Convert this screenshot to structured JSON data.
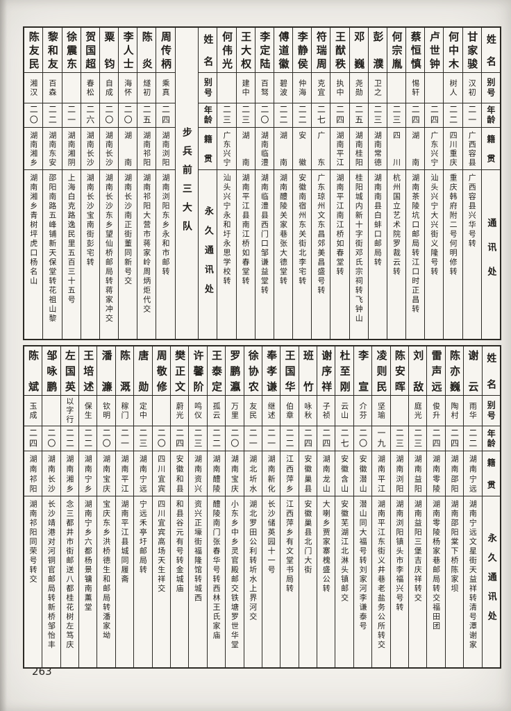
{
  "page": {
    "number": "263"
  },
  "t1": {
    "h1": {
      "name": "姓名",
      "alias": "别号",
      "age": "年龄",
      "native": "籍贯",
      "address": "通讯处"
    },
    "right_entries": [
      {
        "name": "甘家骏",
        "alias": "汉初",
        "age": "二一",
        "native": "广西容县",
        "address": "广西容县兴华号转"
      },
      {
        "name": "何中木",
        "alias": "树人",
        "age": "二二",
        "native": "四川重庆",
        "address": "重庆韩府附二号何明修转"
      },
      {
        "name": "卢世钟",
        "alias": "",
        "age": "二四",
        "native": "广东兴宁",
        "address": "汕头兴宁大兴街义隆号转"
      },
      {
        "name": "蔡恒慎",
        "alias": "惕轩",
        "age": "二四",
        "native": "湖南",
        "address": "湖南茶陵坑口邮局转江口时正昌转"
      },
      {
        "name": "何宗胤",
        "alias": "",
        "age": "二三",
        "native": "四川",
        "address": "杭州国立艺术院罗裁云转"
      },
      {
        "name": "彭濮",
        "alias": "卫之",
        "age": "二三",
        "native": "湖南常德",
        "address": "湖南南县白蚌口邮局转"
      },
      {
        "name": "邓巍",
        "alias": "尧勋",
        "age": "二五",
        "native": "湖南桂阳",
        "address": "桂阳城内新十字街邓氏宗祠转飞钟山"
      },
      {
        "name": "王猷秩",
        "alias": "执中",
        "age": "二四",
        "native": "湖南平江",
        "address": "湖南平江南江桥如春堂转"
      },
      {
        "name": "符瑞周",
        "alias": "克宜",
        "age": "二七",
        "native": "广东",
        "address": "广东琼州文东昌郊美昌盛号转"
      },
      {
        "name": "李静侯",
        "alias": "仲海",
        "age": "二二",
        "native": "安徽",
        "address": "安徽南宿州东关街北李宅转"
      },
      {
        "name": "傅道徽",
        "alias": "碧波",
        "age": "二二",
        "native": "湖南",
        "address": "湖南醴陵关家巷张大德堂转"
      },
      {
        "name": "李定陆",
        "alias": "百驽",
        "age": "二〇",
        "native": "湖南临澧",
        "address": "湖南临澧县西门口邹谦益堂转"
      },
      {
        "name": "王大权",
        "alias": "建中",
        "age": "二三",
        "native": "湖南",
        "address": "湖南平江县南江桥如春堂转"
      },
      {
        "name": "何伟光",
        "alias": "",
        "age": "二三",
        "native": "广东兴宁",
        "address": "汕头兴宁永和圩永思学校转"
      }
    ],
    "h2": {
      "name": "姓名",
      "alias": "别号",
      "age": "年龄",
      "native": "籍贯",
      "address": "永久通讯处"
    },
    "section_title": "步兵前三大队",
    "left_entries": [
      {
        "name": "周传柄",
        "alias": "乘真",
        "age": "二四",
        "native": "湖南浏阳",
        "address": "湖南浏阳东乡永和市邮转"
      },
      {
        "name": "陈炎",
        "alias": "燧初",
        "age": "二五",
        "native": "湖南祁阳",
        "address": "湖南祁阳大营市蒋家岭周炳炬代交"
      },
      {
        "name": "李人士",
        "alias": "海怀",
        "age": "二〇",
        "native": "湖南",
        "address": "湖南长沙南正街董同新号交"
      },
      {
        "name": "粟钧",
        "alias": "自成",
        "age": "二〇",
        "native": "湖南长沙",
        "address": "湖南长沙东乡望仙桥邮局转蒋家冲交"
      },
      {
        "name": "贺国超",
        "alias": "春松",
        "age": "二六",
        "native": "湖南长沙",
        "address": "湖南长沙宝南街彭宅转"
      },
      {
        "name": "徐震东",
        "alias": "",
        "age": "二一",
        "native": "湖南湘阴",
        "address": "上海白克路逸民里五百三十五号"
      },
      {
        "name": "黎和友",
        "alias": "百森",
        "age": "二二",
        "native": "湖南东安",
        "address": "邵阳南路五峰铺新天保堂转花祖山黎"
      },
      {
        "name": "陈友民",
        "alias": "湘汉",
        "age": "二〇",
        "native": "湖南湘乡",
        "address": "湖南湘乡青树坪虎口杨名山"
      }
    ]
  },
  "t2": {
    "h": {
      "name": "姓名",
      "alias": "别号",
      "age": "年龄",
      "native": "籍贯",
      "address": "永久通讯处"
    },
    "entries": [
      {
        "name": "谢云",
        "alias": "雨华",
        "age": "二二",
        "native": "湖南宁远",
        "address": "湖南宁远文星街天益祥转清号潭谢家"
      },
      {
        "name": "陈亦巍",
        "alias": "陶村",
        "age": "二四",
        "native": "湖南邵阳",
        "address": "湖南邵阳棠下桥陈家坝"
      },
      {
        "name": "雷声远",
        "alias": "俊升",
        "age": "二四",
        "native": "湖南零陵",
        "address": "湖南零陵杨家巷邮局转交福田团"
      },
      {
        "name": "刘敌",
        "alias": "庭光",
        "age": "二三",
        "native": "湖南益阳",
        "address": "湖南益阳三堡吉庆祥转交"
      },
      {
        "name": "陈安晖",
        "alias": "",
        "age": "二三",
        "native": "湖南浏阳",
        "address": "湖南浏阳镇头市李福兴号转"
      },
      {
        "name": "凌则民",
        "alias": "坚瑜",
        "age": "一九",
        "native": "湖南平江",
        "address": "湖南平江东街义井巷老盐务公所转交"
      },
      {
        "name": "李宣",
        "alias": "介芬",
        "age": "二〇",
        "native": "安徽潜山",
        "address": "潜山同大福号转刘家河李谦泰号"
      },
      {
        "name": "杜至刚",
        "alias": "云山",
        "age": "二七",
        "native": "安徽含山",
        "address": "安徽芜湖江北淋头镇邮交"
      },
      {
        "name": "谢序祥",
        "alias": "子祯",
        "age": "二四",
        "native": "湖南龙山",
        "address": "大喇乡贾家寨槐盛公转"
      },
      {
        "name": "班竹",
        "alias": "咏秋",
        "age": "二四",
        "native": "安徽巢县",
        "address": "安徽巢县北门大街"
      },
      {
        "name": "王国华",
        "alias": "伯章",
        "age": "二二",
        "native": "江西萍乡",
        "address": "江西萍乡有文堂书局转"
      },
      {
        "name": "奉孝谦",
        "alias": "继述",
        "age": "二一",
        "native": "湖南新化",
        "address": "长沙储英园十一号"
      },
      {
        "name": "徐协农",
        "alias": "友民",
        "age": "二一",
        "native": "湖北圻水",
        "address": "湖北罗田公利转圻水上界河交"
      },
      {
        "name": "罗鹏瀛",
        "alias": "万里",
        "age": "二〇",
        "native": "湖南宝庆",
        "address": "小东乡中乡灵官殿邮交铁塘罗世华堂"
      },
      {
        "name": "王泰定",
        "alias": "孤云",
        "age": "二二",
        "native": "湖南醴陵",
        "address": "醴陵南门张春华号转西林王氏家庙"
      },
      {
        "name": "许馨阶",
        "alias": "鸣仪",
        "age": "二三",
        "native": "湖南资兴",
        "address": "资兴正壕街福隆馆转城西"
      },
      {
        "name": "樊正文",
        "alias": "蔚光",
        "age": "二四",
        "native": "安徽和县",
        "address": "和县谷元有号转金城庙"
      },
      {
        "name": "周敬修",
        "alias": "",
        "age": "二〇",
        "native": "四川宜宾",
        "address": "四川宜宾高场天生祥交"
      },
      {
        "name": "唐勋",
        "alias": "定中",
        "age": "二三",
        "native": "湖南宁远",
        "address": "宁远禾亭圩邮局转"
      },
      {
        "name": "陈溉",
        "alias": "稼门",
        "age": "二一",
        "native": "湖南平江",
        "address": "湖南平江县城同履斋"
      },
      {
        "name": "潘濂",
        "alias": "钦明",
        "age": "二〇",
        "native": "湖南宝庆",
        "address": "宝庆东乡洪桥德生和邮局转潘家坳"
      },
      {
        "name": "王培述",
        "alias": "保生",
        "age": "二二",
        "native": "湖南宁乡",
        "address": "湖南宁乡六都杨景镛南薰堂"
      },
      {
        "name": "左国英",
        "alias": "以字行",
        "age": "二二",
        "native": "湖南湘乡",
        "address": "念三都井市街邮送八都桂花树左笃庆"
      },
      {
        "name": "邹咏鹏",
        "alias": "",
        "age": "二〇",
        "native": "湖南长沙",
        "address": "长沙靖港对河铜官邮局转新桥邹怡丰"
      },
      {
        "name": "陈斌",
        "alias": "玉成",
        "age": "二四",
        "native": "湖南祁阳",
        "address": "湖南祁阳同荣号转交"
      }
    ]
  }
}
